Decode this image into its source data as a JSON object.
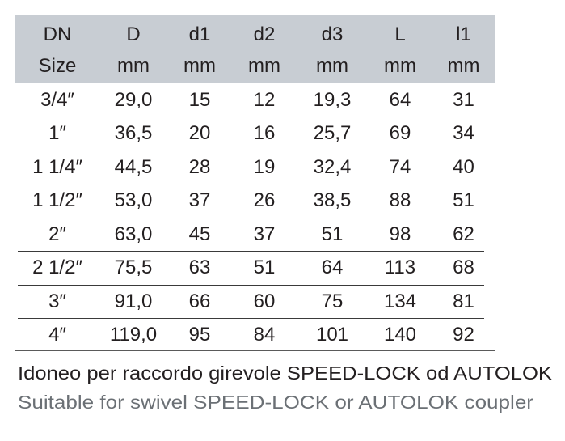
{
  "table": {
    "headers": [
      {
        "name": "DN",
        "unit": "Size"
      },
      {
        "name": "D",
        "unit": "mm"
      },
      {
        "name": "d1",
        "unit": "mm"
      },
      {
        "name": "d2",
        "unit": "mm"
      },
      {
        "name": "d3",
        "unit": "mm"
      },
      {
        "name": "L",
        "unit": "mm"
      },
      {
        "name": "l1",
        "unit": "mm"
      }
    ],
    "rows": [
      [
        "3/4″",
        "29,0",
        "15",
        "12",
        "19,3",
        "64",
        "31"
      ],
      [
        "1″",
        "36,5",
        "20",
        "16",
        "25,7",
        "69",
        "34"
      ],
      [
        "1 1/4″",
        "44,5",
        "28",
        "19",
        "32,4",
        "74",
        "40"
      ],
      [
        "1 1/2″",
        "53,0",
        "37",
        "26",
        "38,5",
        "88",
        "51"
      ],
      [
        "2″",
        "63,0",
        "45",
        "37",
        "51",
        "98",
        "62"
      ],
      [
        "2 1/2″",
        "75,5",
        "63",
        "51",
        "64",
        "113",
        "68"
      ],
      [
        "3″",
        "91,0",
        "66",
        "60",
        "75",
        "134",
        "81"
      ],
      [
        "4″",
        "119,0",
        "95",
        "84",
        "101",
        "140",
        "92"
      ]
    ],
    "header_bg": "#c8cdd3"
  },
  "captions": {
    "italian": "Idoneo per raccordo girevole SPEED-LOCK od AUTOLOK",
    "english": "Suitable for swivel SPEED-LOCK or AUTOLOK coupler",
    "english_color": "#6b7075"
  }
}
